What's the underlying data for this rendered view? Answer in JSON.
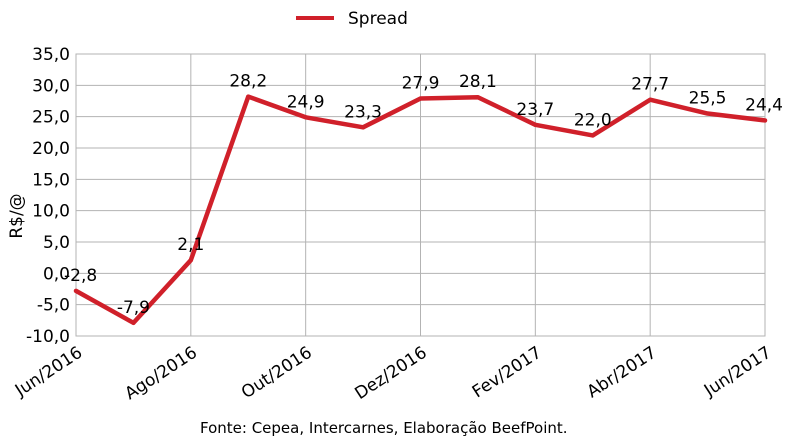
{
  "chart_data": {
    "type": "line",
    "title": "",
    "xlabel": "",
    "ylabel": "R$/@",
    "ylim": [
      -10,
      35
    ],
    "yticks": [
      35,
      30,
      25,
      20,
      15,
      10,
      5,
      0,
      -5,
      -10
    ],
    "ytick_labels": [
      "35,0",
      "30,0",
      "25,0",
      "20,0",
      "15,0",
      "10,0",
      "5,0",
      "0,0",
      "-5,0",
      "-10,0"
    ],
    "x": [
      "Jun/2016",
      "Jul/2016",
      "Ago/2016",
      "Set/2016",
      "Out/2016",
      "Nov/2016",
      "Dez/2016",
      "Jan/2017",
      "Fev/2017",
      "Mar/2017",
      "Abr/2017",
      "Mai/2017",
      "Jun/2017"
    ],
    "xtick_labels_shown": [
      "Jun/2016",
      "",
      "Ago/2016",
      "",
      "Out/2016",
      "",
      "Dez/2016",
      "",
      "Fev/2017",
      "",
      "Abr/2017",
      "",
      "Jun/2017"
    ],
    "series": [
      {
        "name": "Spread",
        "color": "#d0202a",
        "values": [
          -2.8,
          -7.9,
          2.1,
          28.2,
          24.9,
          23.3,
          27.9,
          28.1,
          23.7,
          22.0,
          27.7,
          25.5,
          24.4
        ],
        "labels": [
          "-2,8",
          "-7,9",
          "2,1",
          "28,2",
          "24,9",
          "23,3",
          "27,9",
          "28,1",
          "23,7",
          "22,0",
          "27,7",
          "25,5",
          "24,4"
        ]
      }
    ],
    "grid": true,
    "legend_position": "top-center",
    "source": "Fonte: Cepea, Intercarnes, Elaboração BeefPoint."
  }
}
